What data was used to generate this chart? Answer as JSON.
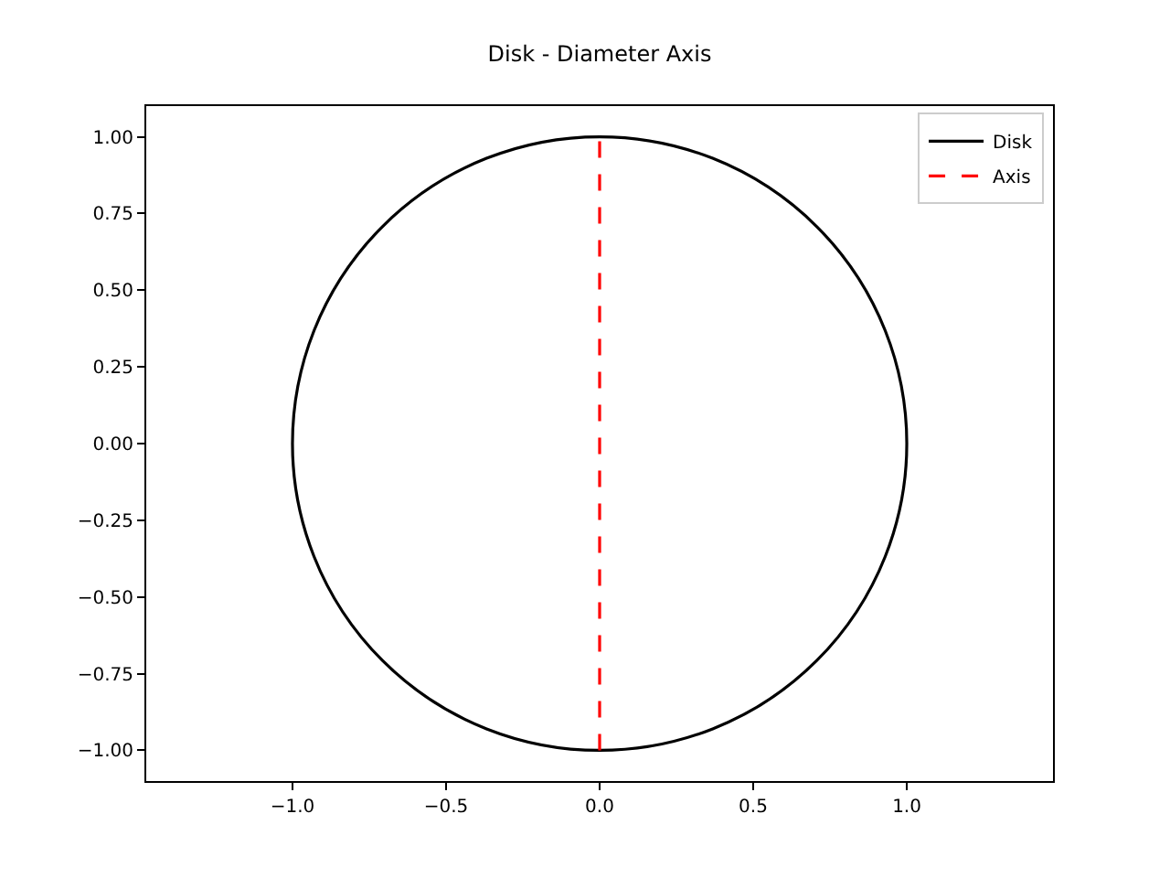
{
  "chart_data": {
    "type": "line",
    "title": "Disk - Diameter Axis",
    "grid": false,
    "legend": "top right",
    "marker": "none",
    "xlim": [
      -1.476,
      1.476
    ],
    "ylim": [
      -1.1,
      1.1
    ],
    "xticks": [
      {
        "value": -1,
        "label": "−1.0"
      },
      {
        "value": -0.5,
        "label": "−0.5"
      },
      {
        "value": 0,
        "label": "0.0"
      },
      {
        "value": 0.5,
        "label": "0.5"
      },
      {
        "value": 1,
        "label": "1.0"
      }
    ],
    "yticks": [
      {
        "value": -1,
        "label": "−1.00"
      },
      {
        "value": -0.75,
        "label": "−0.75"
      },
      {
        "value": -0.5,
        "label": "−0.50"
      },
      {
        "value": -0.25,
        "label": "−0.25"
      },
      {
        "value": 0,
        "label": "0.00"
      },
      {
        "value": 0.25,
        "label": "0.25"
      },
      {
        "value": 0.5,
        "label": "0.50"
      },
      {
        "value": 0.75,
        "label": "0.75"
      },
      {
        "value": 1,
        "label": "1.00"
      }
    ],
    "annotations": [
      "Disk"
    ],
    "series": [
      {
        "name": "Axis",
        "color": "#ff0000",
        "line_style": "dashed",
        "x": [
          0,
          0
        ],
        "values": [
          -1,
          1
        ]
      }
    ]
  }
}
